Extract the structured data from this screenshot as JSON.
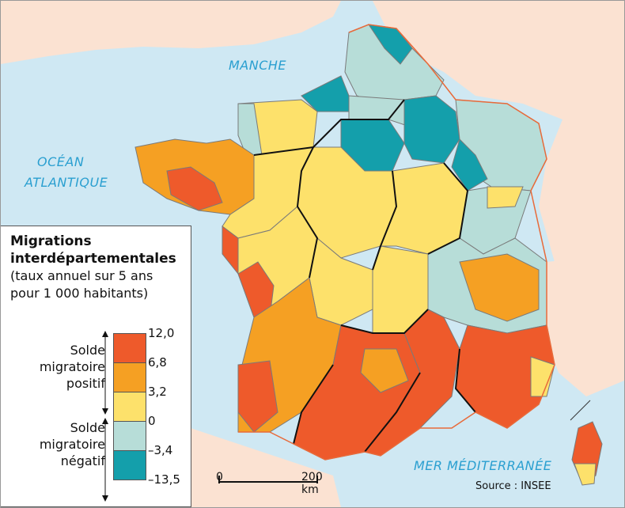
{
  "map": {
    "seas": {
      "manche": "MANCHE",
      "ocean_line1": "OCÉAN",
      "ocean_line2": "ATLANTIQUE",
      "mediterranee": "MER MÉDITERRANÉE"
    },
    "colors": {
      "sea": "#cfe8f3",
      "foreign_land": "#fbe2d2",
      "class_12": "#ee5a2b",
      "class_6_8": "#f5a023",
      "class_3_2": "#fde16b",
      "class_0": "#b7ddd8",
      "class_neg": "#149fab",
      "border_region": "#111111",
      "border_dept": "#7a7a7a"
    }
  },
  "legend": {
    "title_line1": "Migrations",
    "title_line2": "interdépartementales",
    "subtitle_line1": "(taux annuel sur 5 ans",
    "subtitle_line2": "pour 1 000 habitants)",
    "positive_label": [
      "Solde",
      "migratoire",
      "positif"
    ],
    "negative_label": [
      "Solde",
      "migratoire",
      "négatif"
    ],
    "ticks": [
      "12,0",
      "6,8",
      "3,2",
      "0",
      "–3,4",
      "–13,5"
    ],
    "classes": [
      {
        "range": [
          6.8,
          12.0
        ],
        "color": "#ee5a2b"
      },
      {
        "range": [
          3.2,
          6.8
        ],
        "color": "#f5a023"
      },
      {
        "range": [
          0,
          3.2
        ],
        "color": "#fde16b"
      },
      {
        "range": [
          -3.4,
          0
        ],
        "color": "#b7ddd8"
      },
      {
        "range": [
          -13.5,
          -3.4
        ],
        "color": "#149fab"
      }
    ]
  },
  "scale": {
    "start": "0",
    "end": "200 km"
  },
  "source": "Source : INSEE"
}
